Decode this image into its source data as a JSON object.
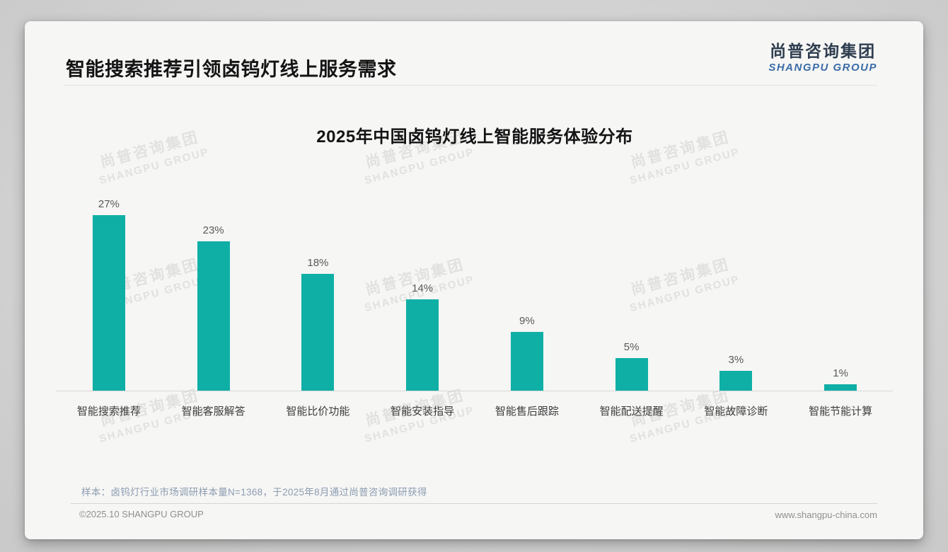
{
  "page": {
    "title": "智能搜索推荐引领卤钨灯线上服务需求"
  },
  "logo": {
    "cn": "尚普咨询集团",
    "en": "SHANGPU GROUP"
  },
  "watermark": {
    "cn": "尚普咨询集团",
    "en": "SHANGPU GROUP"
  },
  "chart_data": {
    "type": "bar",
    "title": "2025年中国卤钨灯线上智能服务体验分布",
    "categories": [
      "智能搜索推荐",
      "智能客服解答",
      "智能比价功能",
      "智能安装指导",
      "智能售后跟踪",
      "智能配送提醒",
      "智能故障诊断",
      "智能节能计算"
    ],
    "values": [
      27,
      23,
      18,
      14,
      9,
      5,
      3,
      1
    ],
    "data_labels": [
      "27%",
      "23%",
      "18%",
      "14%",
      "9%",
      "5%",
      "3%",
      "1%"
    ],
    "unit": "%",
    "bar_color": "#0fafa6",
    "ylim": [
      0,
      28
    ],
    "grid": false,
    "legend": "none",
    "xlabel": "",
    "ylabel": ""
  },
  "footnote": "样本：卤钨灯行业市场调研样本量N=1368，于2025年8月通过尚普咨询调研获得",
  "footer": {
    "left": "©2025.10 SHANGPU GROUP",
    "right": "www.shangpu-china.com"
  }
}
